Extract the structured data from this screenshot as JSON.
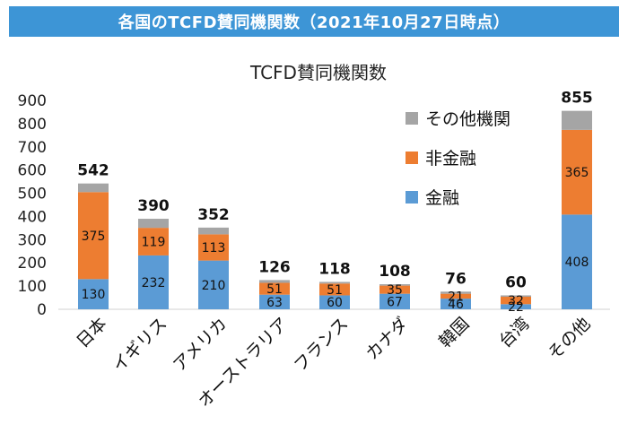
{
  "banner_title": "各国のTCFD賛同機関数（2021年10月27日時点）",
  "colors": {
    "banner": "#3d95d6",
    "kinyu": "#5b9bd5",
    "hikinyu": "#ed7d31",
    "other": "#a5a5a5"
  },
  "chart_data": {
    "type": "bar",
    "stacked": true,
    "title": "TCFD賛同機関数",
    "xlabel": "",
    "ylabel": "",
    "ylim": [
      0,
      900
    ],
    "yticks": [
      0,
      100,
      200,
      300,
      400,
      500,
      600,
      700,
      800,
      900
    ],
    "categories": [
      "日本",
      "イギリス",
      "アメリカ",
      "オーストラリア",
      "フランス",
      "カナダ",
      "韓国",
      "台湾",
      "その他"
    ],
    "totals": [
      542,
      390,
      352,
      126,
      118,
      108,
      76,
      60,
      855
    ],
    "series": [
      {
        "name": "金融",
        "values": [
          130,
          232,
          210,
          63,
          60,
          67,
          46,
          22,
          408
        ]
      },
      {
        "name": "非金融",
        "values": [
          375,
          119,
          113,
          51,
          51,
          35,
          21,
          32,
          365
        ]
      },
      {
        "name": "その他機関",
        "values": [
          37,
          39,
          29,
          12,
          7,
          6,
          9,
          6,
          82
        ]
      }
    ],
    "legend": {
      "position": "top-right",
      "order": [
        "その他機関",
        "非金融",
        "金融"
      ]
    },
    "grid": false
  }
}
